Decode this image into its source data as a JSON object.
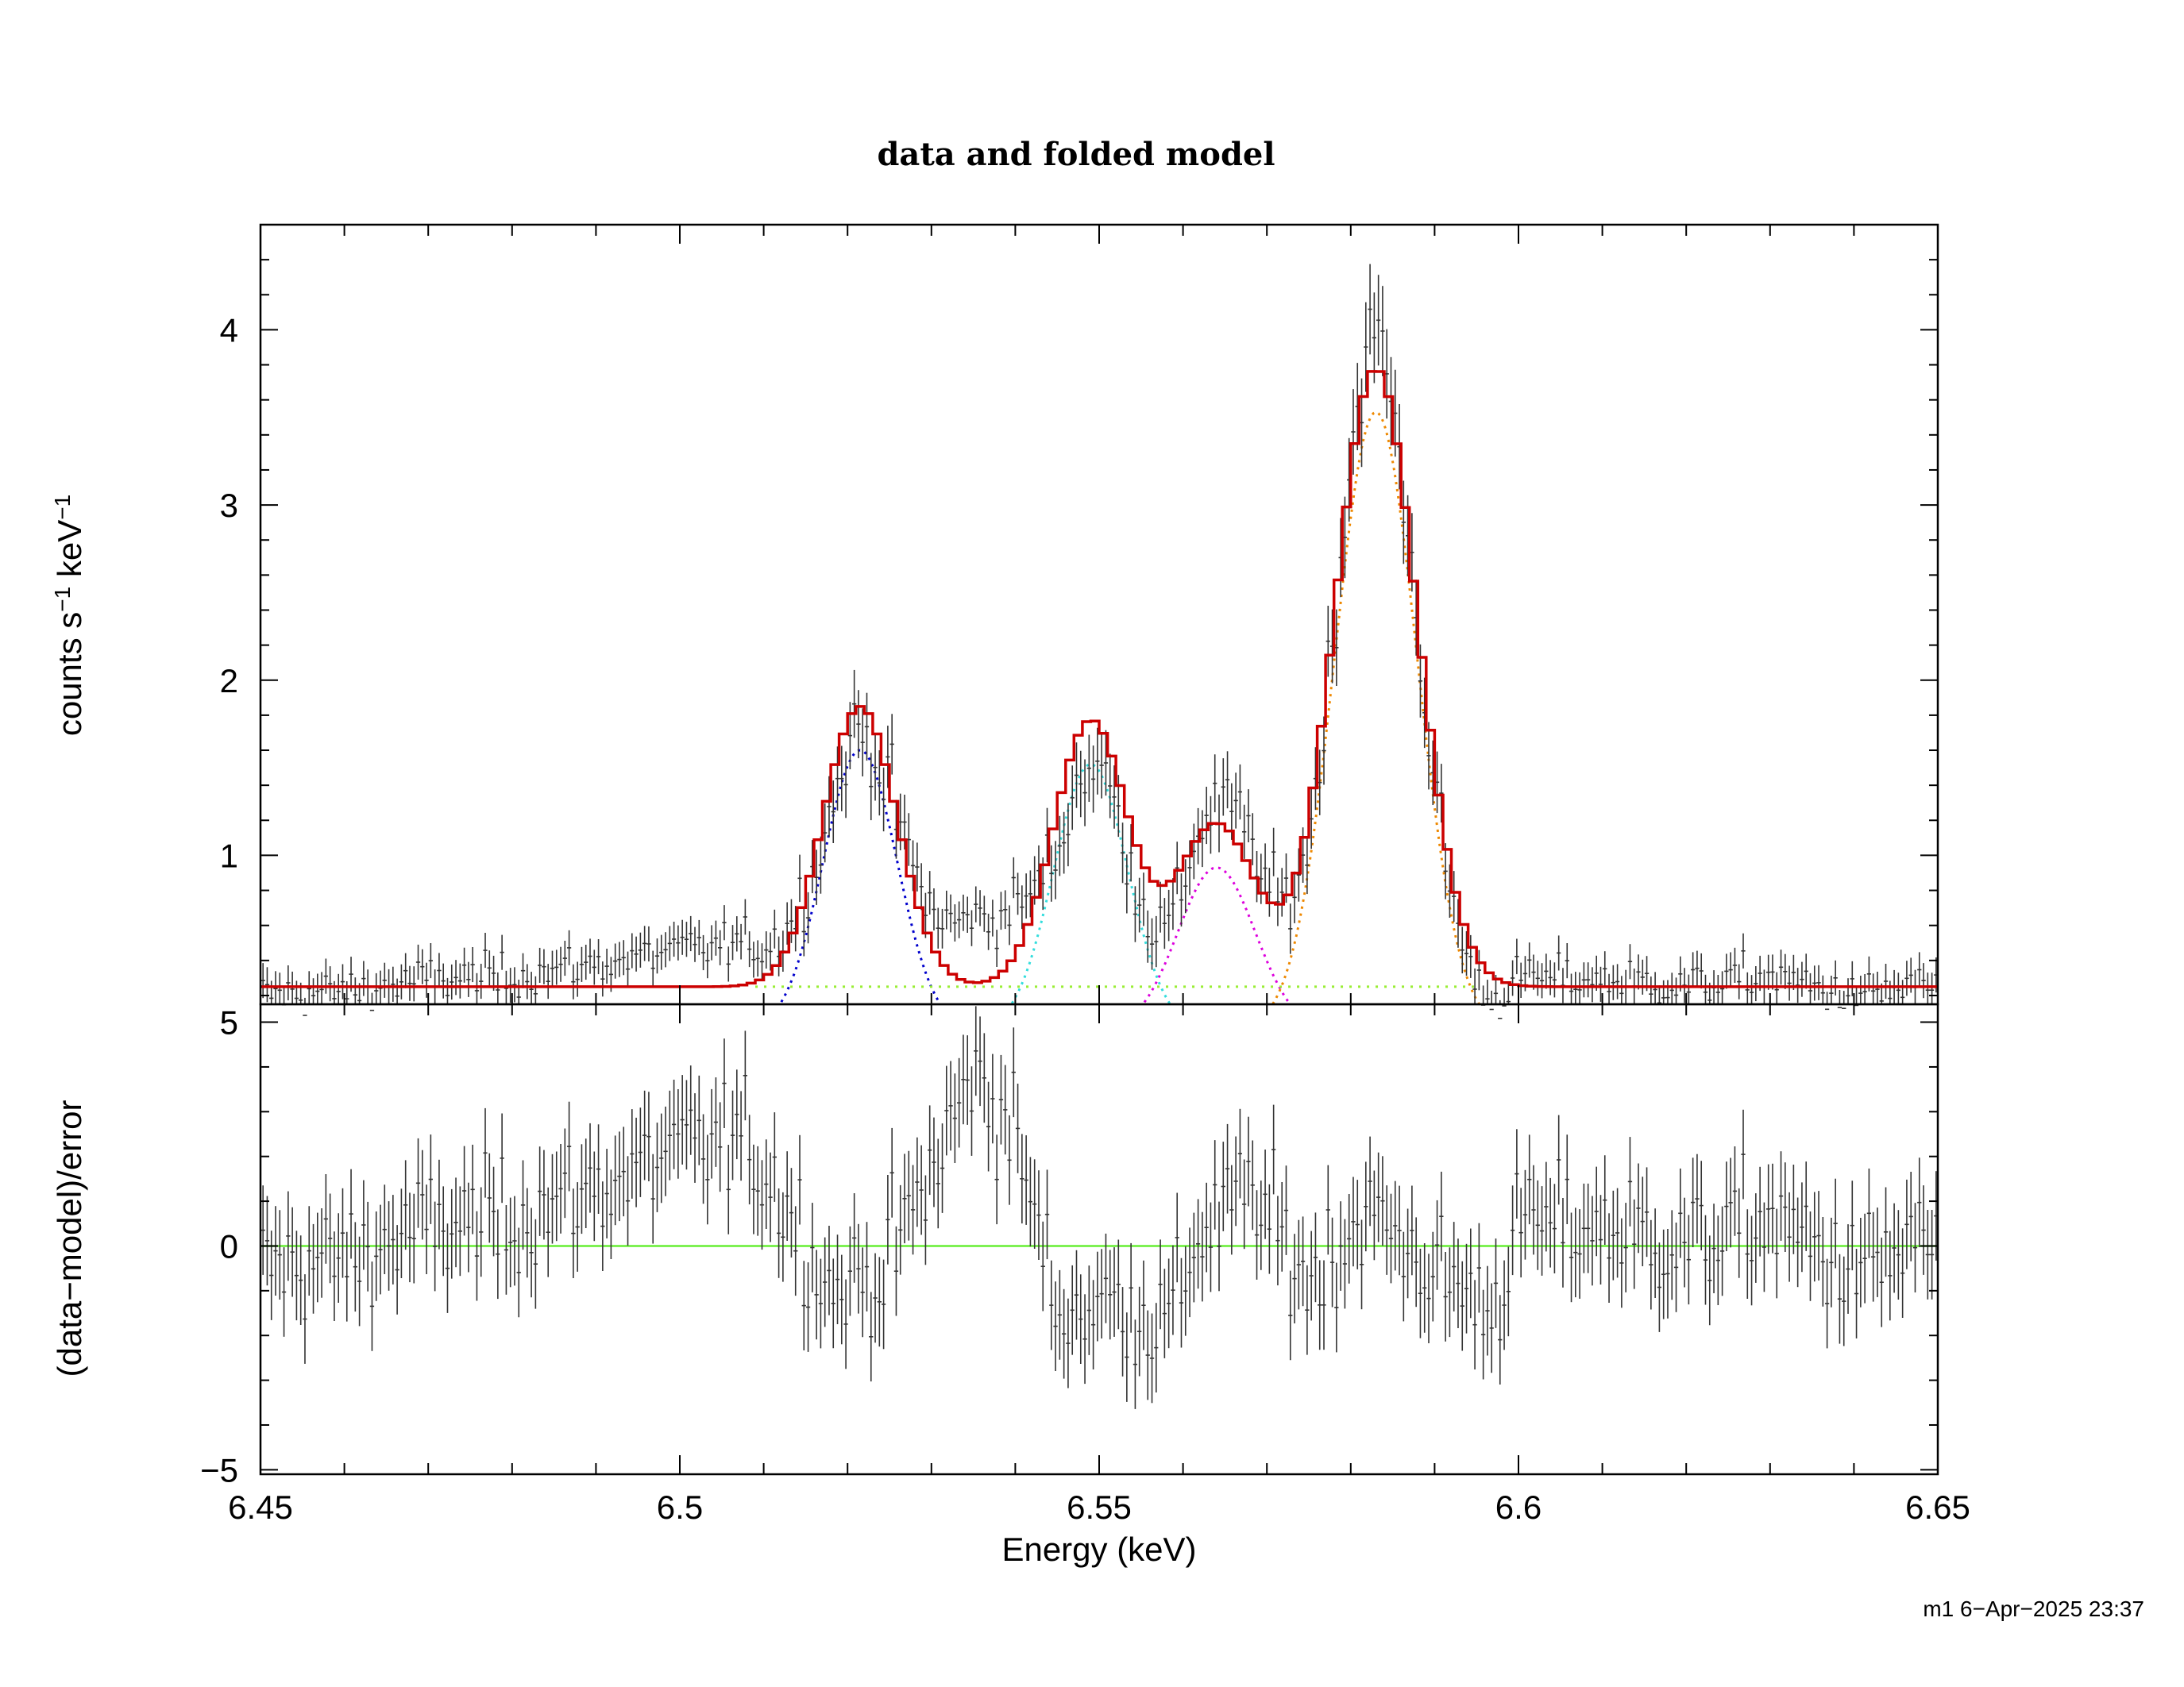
{
  "title": "data and folded model",
  "footer": "m1  6−Apr−2025 23:37",
  "colors": {
    "model": "#cc0000",
    "data": "#333333",
    "zero_line": "#66ee33",
    "comp1": "#0000cc",
    "comp2": "#33dddd",
    "comp3": "#dd00dd",
    "comp4": "#ee8800",
    "continuum": "#99ee33"
  },
  "chart_data": [
    {
      "type": "line",
      "panel": "top",
      "ylabel_parts": [
        "counts s",
        "−1",
        " keV",
        "−1"
      ],
      "xlim": [
        6.45,
        6.65
      ],
      "ylim": [
        0.15,
        4.6
      ],
      "yticks": [
        "1",
        "2",
        "3",
        "4"
      ],
      "ytick_values": [
        1,
        2,
        3,
        4
      ],
      "continuum": 0.25,
      "model_lines": [
        {
          "center": 6.5215,
          "amplitude": 1.6,
          "sigma": 0.0044
        },
        {
          "center": 6.549,
          "amplitude": 1.52,
          "sigma": 0.0044
        },
        {
          "center": 6.564,
          "amplitude": 0.93,
          "sigma": 0.0046
        },
        {
          "center": 6.583,
          "amplitude": 3.53,
          "sigma": 0.0049
        }
      ],
      "model_bin_width": 0.001,
      "data_points": {
        "x_start": 6.4503,
        "bin_width": 0.0005,
        "note_values": [
          0.25,
          0.23,
          0.26,
          0.24,
          0.27,
          0.25,
          0.24,
          0.26,
          0.25,
          0.27,
          0.24,
          0.26,
          0.28,
          0.25,
          0.24,
          0.27,
          0.26,
          0.25,
          0.28,
          0.26,
          0.25,
          0.27,
          0.29,
          0.26,
          0.25,
          0.28,
          0.27,
          0.26,
          0.29,
          0.27,
          0.28,
          0.3,
          0.27,
          0.29,
          0.31,
          0.28,
          0.3,
          0.33,
          0.31,
          0.35,
          0.33,
          0.37,
          0.36,
          0.4,
          0.38,
          0.42,
          0.4,
          0.45,
          0.43,
          0.46,
          0.44,
          0.48,
          0.47,
          0.5,
          0.49,
          0.52,
          0.51,
          0.55
        ]
      }
    },
    {
      "type": "scatter",
      "panel": "bottom",
      "ylabel": "(data−model)/error",
      "xlabel": "Energy (keV)",
      "xlim": [
        6.45,
        6.65
      ],
      "ylim": [
        -5.1,
        5.4
      ],
      "yticks": [
        "−5",
        "0",
        "5"
      ],
      "ytick_values": [
        -5,
        0,
        5
      ],
      "xticks": [
        "6.45",
        "6.5",
        "6.55",
        "6.6",
        "6.65"
      ],
      "xtick_values": [
        6.45,
        6.5,
        6.55,
        6.6,
        6.65
      ],
      "residual_trend": [
        [
          6.45,
          -0.5
        ],
        [
          6.46,
          -0.3
        ],
        [
          6.47,
          0.4
        ],
        [
          6.48,
          0.6
        ],
        [
          6.49,
          1.3
        ],
        [
          6.5,
          2.1
        ],
        [
          6.507,
          2.4
        ],
        [
          6.512,
          1.2
        ],
        [
          6.518,
          -1.0
        ],
        [
          6.524,
          -0.6
        ],
        [
          6.53,
          1.6
        ],
        [
          6.535,
          3.9
        ],
        [
          6.54,
          2.5
        ],
        [
          6.545,
          -1.5
        ],
        [
          6.552,
          -1.2
        ],
        [
          6.558,
          -1.8
        ],
        [
          6.562,
          0.3
        ],
        [
          6.568,
          1.2
        ],
        [
          6.575,
          -0.8
        ],
        [
          6.582,
          0.8
        ],
        [
          6.59,
          -0.6
        ],
        [
          6.597,
          -1.4
        ],
        [
          6.6,
          0.5
        ],
        [
          6.61,
          0.4
        ],
        [
          6.62,
          0.0
        ],
        [
          6.63,
          0.6
        ],
        [
          6.64,
          -0.6
        ],
        [
          6.65,
          0.2
        ]
      ]
    }
  ]
}
